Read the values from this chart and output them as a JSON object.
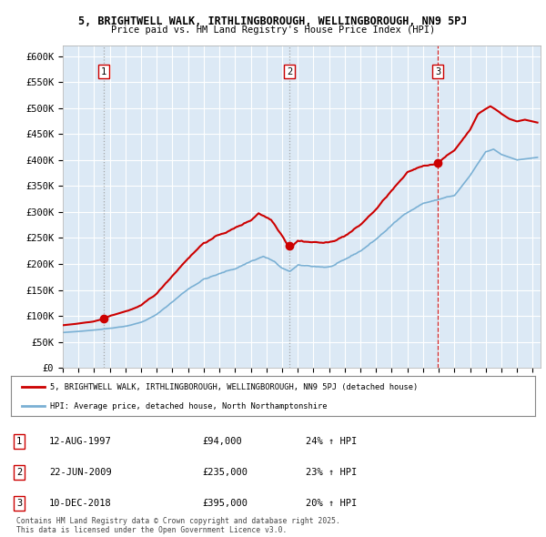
{
  "title_line1": "5, BRIGHTWELL WALK, IRTHLINGBOROUGH, WELLINGBOROUGH, NN9 5PJ",
  "title_line2": "Price paid vs. HM Land Registry's House Price Index (HPI)",
  "background_color": "#dce9f5",
  "y_ticks": [
    0,
    50000,
    100000,
    150000,
    200000,
    250000,
    300000,
    350000,
    400000,
    450000,
    500000,
    550000,
    600000
  ],
  "y_tick_labels": [
    "£0",
    "£50K",
    "£100K",
    "£150K",
    "£200K",
    "£250K",
    "£300K",
    "£350K",
    "£400K",
    "£450K",
    "£500K",
    "£550K",
    "£600K"
  ],
  "ylim": [
    0,
    620000
  ],
  "sale_year_floats": [
    1997.62,
    2009.47,
    2018.94
  ],
  "sale_prices": [
    94000,
    235000,
    395000
  ],
  "sale_color": "#cc0000",
  "hpi_color": "#7ab0d4",
  "vline_colors": [
    "#999999",
    "#999999",
    "#cc0000"
  ],
  "vline_styles": [
    ":",
    ":",
    "--"
  ],
  "legend_line1": "5, BRIGHTWELL WALK, IRTHLINGBOROUGH, WELLINGBOROUGH, NN9 5PJ (detached house)",
  "legend_line2": "HPI: Average price, detached house, North Northamptonshire",
  "table_rows": [
    [
      "1",
      "12-AUG-1997",
      "£94,000",
      "24% ↑ HPI"
    ],
    [
      "2",
      "22-JUN-2009",
      "£235,000",
      "23% ↑ HPI"
    ],
    [
      "3",
      "10-DEC-2018",
      "£395,000",
      "20% ↑ HPI"
    ]
  ],
  "footnote": "Contains HM Land Registry data © Crown copyright and database right 2025.\nThis data is licensed under the Open Government Licence v3.0."
}
